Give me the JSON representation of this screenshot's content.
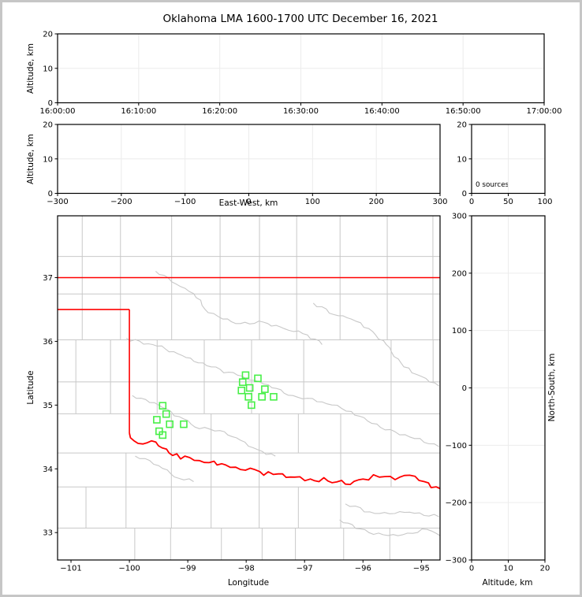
{
  "title": "Oklahoma LMA 1600-1700 UTC December 16, 2021",
  "colors": {
    "axis": "#000000",
    "grid": "#ececec",
    "county_line": "#c8c8c8",
    "state_border": "#ff0000",
    "station": "#47ef47",
    "frame": "#c6c6c6"
  },
  "chart_data": [
    {
      "id": "time-height",
      "type": "scatter",
      "title": "Oklahoma LMA 1600-1700 UTC December 16, 2021",
      "xlabel": "",
      "ylabel": "Altitude, km",
      "x_tick_labels": [
        "16:00:00",
        "16:10:00",
        "16:20:00",
        "16:30:00",
        "16:40:00",
        "16:50:00",
        "17:00:00"
      ],
      "y_ticks": [
        0,
        10,
        20
      ],
      "ylim": [
        0,
        20
      ],
      "grid": true,
      "points": []
    },
    {
      "id": "ew-height",
      "type": "scatter",
      "xlabel": "East-West, km",
      "ylabel": "Altitude, km",
      "x_ticks": [
        -300,
        -200,
        -100,
        0,
        100,
        200,
        300
      ],
      "y_ticks": [
        0,
        10,
        20
      ],
      "xlim": [
        -300,
        300
      ],
      "ylim": [
        0,
        20
      ],
      "grid": true,
      "points": []
    },
    {
      "id": "altitude-histogram",
      "type": "histogram",
      "x_ticks": [
        0,
        50,
        100
      ],
      "y_ticks": [
        0,
        10,
        20
      ],
      "xlim": [
        0,
        100
      ],
      "ylim": [
        0,
        20
      ],
      "annotation": "0 sources",
      "grid": true,
      "values": []
    },
    {
      "id": "plan-view-map",
      "type": "map-scatter",
      "xlabel": "Longitude",
      "ylabel": "Latitude",
      "x_ticks": [
        -101,
        -100,
        -99,
        -98,
        -97,
        -96,
        -95
      ],
      "y_ticks": [
        33,
        34,
        35,
        36,
        37
      ],
      "xlim": [
        -101.23,
        -94.68
      ],
      "ylim": [
        32.57,
        37.97
      ],
      "stations_lon_lat": [
        [
          -99.43,
          34.99
        ],
        [
          -99.37,
          34.86
        ],
        [
          -99.53,
          34.77
        ],
        [
          -99.31,
          34.7
        ],
        [
          -99.07,
          34.7
        ],
        [
          -99.49,
          34.59
        ],
        [
          -99.43,
          34.53
        ],
        [
          -98.01,
          35.47
        ],
        [
          -97.8,
          35.42
        ],
        [
          -98.06,
          35.36
        ],
        [
          -97.94,
          35.27
        ],
        [
          -98.08,
          35.23
        ],
        [
          -97.68,
          35.25
        ],
        [
          -97.96,
          35.13
        ],
        [
          -97.73,
          35.13
        ],
        [
          -97.53,
          35.13
        ],
        [
          -97.91,
          35.0
        ]
      ],
      "state_border": {
        "north_lat": 37.0,
        "panhandle_lat": 36.5,
        "panhandle_lon": -100.0,
        "red_river_lon_lat": [
          [
            -100.0,
            34.56
          ],
          [
            -99.92,
            34.44
          ],
          [
            -99.77,
            34.39
          ],
          [
            -99.62,
            34.44
          ],
          [
            -99.44,
            34.33
          ],
          [
            -99.26,
            34.21
          ],
          [
            -99.05,
            34.2
          ],
          [
            -98.8,
            34.13
          ],
          [
            -98.55,
            34.12
          ],
          [
            -98.35,
            34.06
          ],
          [
            -98.1,
            33.99
          ],
          [
            -97.93,
            34.01
          ],
          [
            -97.7,
            33.9
          ],
          [
            -97.45,
            33.92
          ],
          [
            -97.17,
            33.87
          ],
          [
            -96.9,
            33.84
          ],
          [
            -96.6,
            33.81
          ],
          [
            -96.3,
            33.76
          ],
          [
            -96.0,
            33.84
          ],
          [
            -95.72,
            33.87
          ],
          [
            -95.45,
            33.83
          ],
          [
            -95.2,
            33.9
          ],
          [
            -94.95,
            33.8
          ],
          [
            -94.68,
            33.69
          ]
        ]
      },
      "rivers_lon_lat": [
        [
          [
            -99.55,
            37.1
          ],
          [
            -99.2,
            36.9
          ],
          [
            -98.9,
            36.75
          ],
          [
            -98.65,
            36.45
          ],
          [
            -98.4,
            36.35
          ],
          [
            -98.1,
            36.28
          ],
          [
            -97.7,
            36.3
          ],
          [
            -97.35,
            36.2
          ],
          [
            -96.95,
            36.1
          ],
          [
            -96.7,
            35.95
          ]
        ],
        [
          [
            -96.85,
            36.6
          ],
          [
            -96.5,
            36.42
          ],
          [
            -96.2,
            36.35
          ],
          [
            -95.9,
            36.2
          ],
          [
            -95.6,
            35.95
          ],
          [
            -95.3,
            35.6
          ],
          [
            -95.0,
            35.45
          ],
          [
            -94.7,
            35.3
          ]
        ],
        [
          [
            -100.05,
            36.05
          ],
          [
            -99.6,
            35.95
          ],
          [
            -99.1,
            35.78
          ],
          [
            -98.6,
            35.6
          ],
          [
            -98.15,
            35.47
          ],
          [
            -97.7,
            35.33
          ],
          [
            -97.2,
            35.15
          ],
          [
            -96.7,
            35.05
          ],
          [
            -96.2,
            34.9
          ],
          [
            -95.7,
            34.65
          ],
          [
            -95.2,
            34.5
          ],
          [
            -94.7,
            34.35
          ]
        ],
        [
          [
            -99.95,
            35.15
          ],
          [
            -99.5,
            35.0
          ],
          [
            -99.15,
            34.82
          ],
          [
            -98.8,
            34.63
          ],
          [
            -98.45,
            34.6
          ],
          [
            -98.1,
            34.45
          ],
          [
            -97.8,
            34.3
          ],
          [
            -97.5,
            34.2
          ]
        ],
        [
          [
            -99.9,
            34.2
          ],
          [
            -99.5,
            34.05
          ],
          [
            -99.15,
            33.85
          ],
          [
            -98.9,
            33.8
          ]
        ],
        [
          [
            -96.3,
            33.45
          ],
          [
            -95.8,
            33.3
          ],
          [
            -95.2,
            33.32
          ],
          [
            -94.7,
            33.25
          ]
        ],
        [
          [
            -96.4,
            33.2
          ],
          [
            -95.9,
            33.0
          ],
          [
            -95.4,
            32.95
          ],
          [
            -94.9,
            33.05
          ],
          [
            -94.68,
            32.95
          ]
        ]
      ]
    },
    {
      "id": "ns-height",
      "type": "scatter",
      "xlabel": "Altitude, km",
      "ylabel": "North-South, km",
      "x_ticks": [
        0,
        10,
        20
      ],
      "y_ticks": [
        300,
        200,
        100,
        0,
        -100,
        -200,
        -300
      ],
      "xlim": [
        0,
        20
      ],
      "ylim": [
        -300,
        300
      ],
      "grid": true,
      "points": []
    }
  ]
}
